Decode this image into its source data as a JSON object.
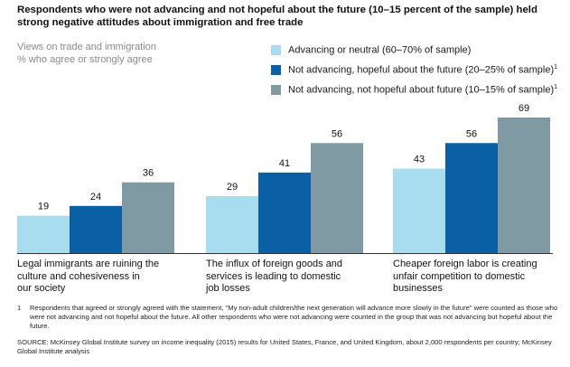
{
  "title": "Respondents who were not advancing and not hopeful about the future (10–15 percent of the sample) held strong negative attitudes about immigration and free trade",
  "subtitle": "Views on trade and immigration",
  "subtitle2": "% who agree or strongly agree",
  "legend": [
    {
      "label": "Advancing or neutral (60–70% of sample)",
      "sup": "",
      "color": "#a8dcef"
    },
    {
      "label": "Not advancing, hopeful about the future (20–25% of sample)",
      "sup": "1",
      "color": "#0b5fa5"
    },
    {
      "label": "Not advancing, not hopeful about future (10–15% of sample)",
      "sup": "1",
      "color": "#7f9aa3"
    }
  ],
  "chart_data": {
    "type": "bar",
    "categories": [
      "Legal immigrants are ruining the culture and cohesiveness in our society",
      "The influx of foreign goods and services is leading to domestic job losses",
      "Cheaper foreign labor is creating unfair competition to domestic businesses"
    ],
    "series": [
      {
        "name": "Advancing or neutral (60–70% of sample)",
        "values": [
          19,
          29,
          43
        ]
      },
      {
        "name": "Not advancing, hopeful about the future (20–25% of sample)",
        "values": [
          24,
          41,
          56
        ]
      },
      {
        "name": "Not advancing, not hopeful about future (10–15% of sample)",
        "values": [
          36,
          56,
          69
        ]
      }
    ],
    "ylim": [
      0,
      69
    ],
    "title": "Views on trade and immigration",
    "ylabel": "% who agree or strongly agree"
  },
  "category_labels": [
    [
      "Legal immigrants are ruining the",
      "culture and cohesiveness in",
      "our society"
    ],
    [
      "The influx of foreign goods and",
      "services is leading to domestic",
      "job losses"
    ],
    [
      "Cheaper foreign labor is creating",
      "unfair competition to domestic",
      "businesses"
    ]
  ],
  "footnote": {
    "number": "1",
    "text": "Respondents that agreed or strongly agreed with the statement, \"My non-adult children/the next generation will advance more slowly in the future\" were counted as those who were not advancing and not hopeful about the future. All other respondents who were not advancing were counted in the group that was not advancing but hopeful about the future."
  },
  "source": "SOURCE: McKinsey Global Institute survey on income inequality (2015) results for United States, France, and United Kingdom, about 2,000 respondents per country; McKinsey Global Institute analysis"
}
